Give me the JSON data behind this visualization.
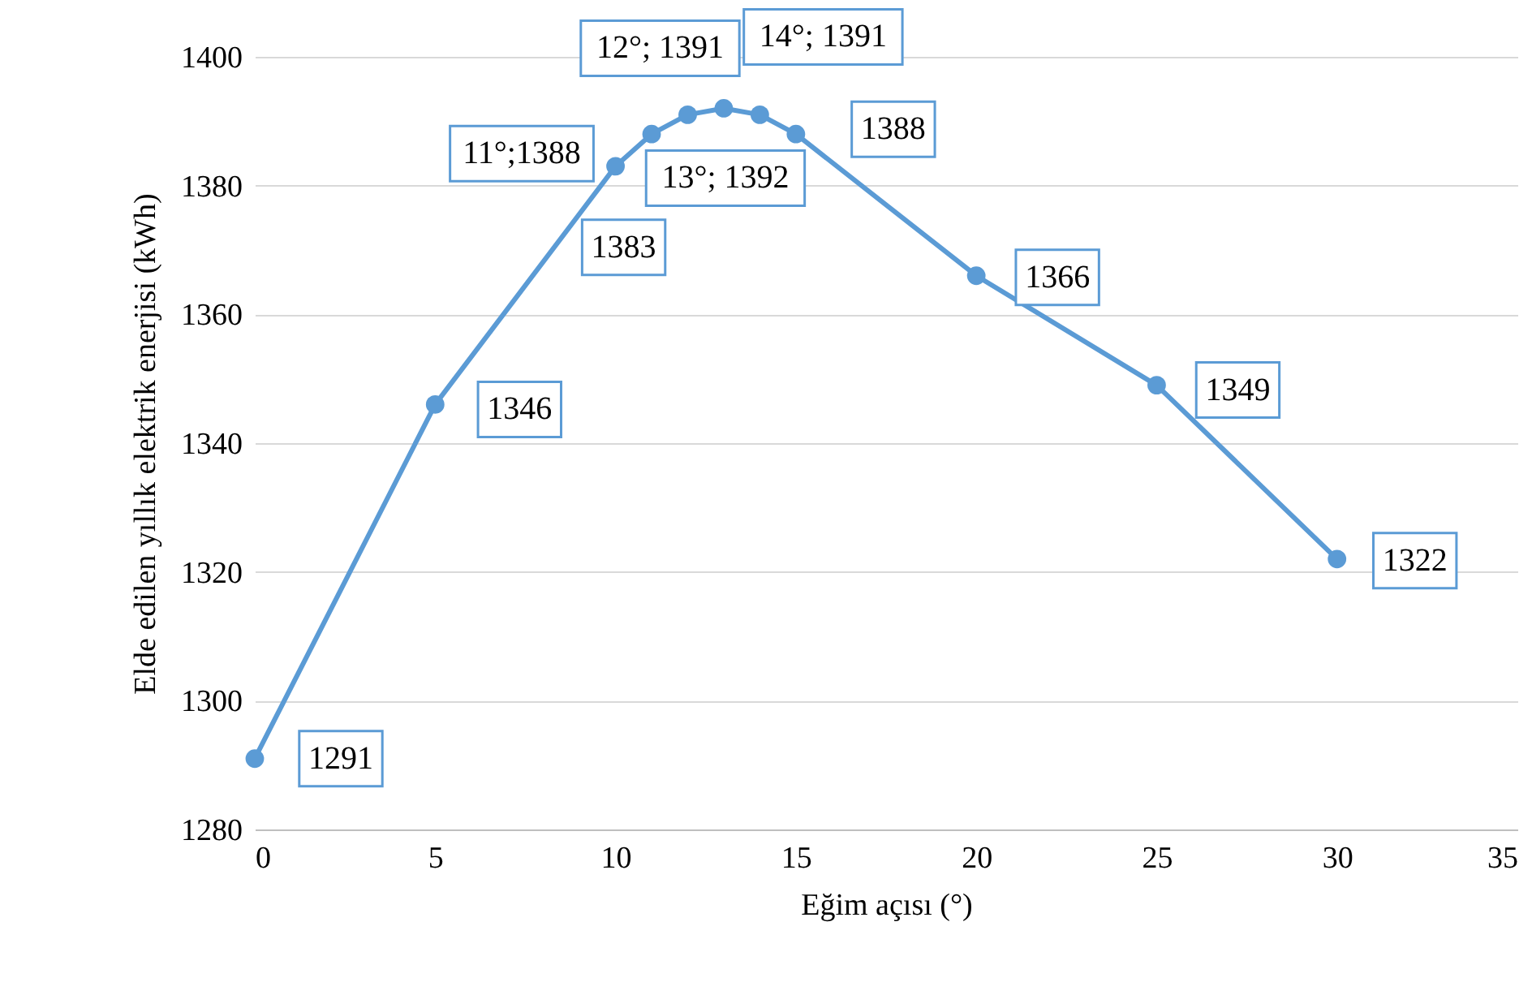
{
  "chart_data": {
    "type": "line",
    "xlabel": "Eğim açısı (°)",
    "ylabel": "Elde edilen yıllık elektrik enerjisi (kWh)",
    "x": [
      0,
      5,
      10,
      11,
      12,
      13,
      14,
      15,
      20,
      25,
      30
    ],
    "series": [
      {
        "color": "#5b9bd5",
        "values": [
          1291,
          1346,
          1383,
          1388,
          1391,
          1392,
          1391,
          1388,
          1366,
          1349,
          1322
        ],
        "value_labels": [
          "1291",
          "1346",
          "1383",
          "11°;1388",
          "12°; 1391",
          "13°; 1392",
          "14°; 1391",
          "1388",
          "1366",
          "1349",
          "1322"
        ]
      }
    ],
    "xlim": [
      0,
      35
    ],
    "xticks": [
      0,
      5,
      10,
      15,
      20,
      25,
      30,
      35
    ],
    "ylim": [
      1280,
      1400
    ],
    "yticks": [
      1280,
      1300,
      1320,
      1340,
      1360,
      1380,
      1400
    ],
    "grid": "y",
    "marker": "circle",
    "line_style": "solid"
  }
}
